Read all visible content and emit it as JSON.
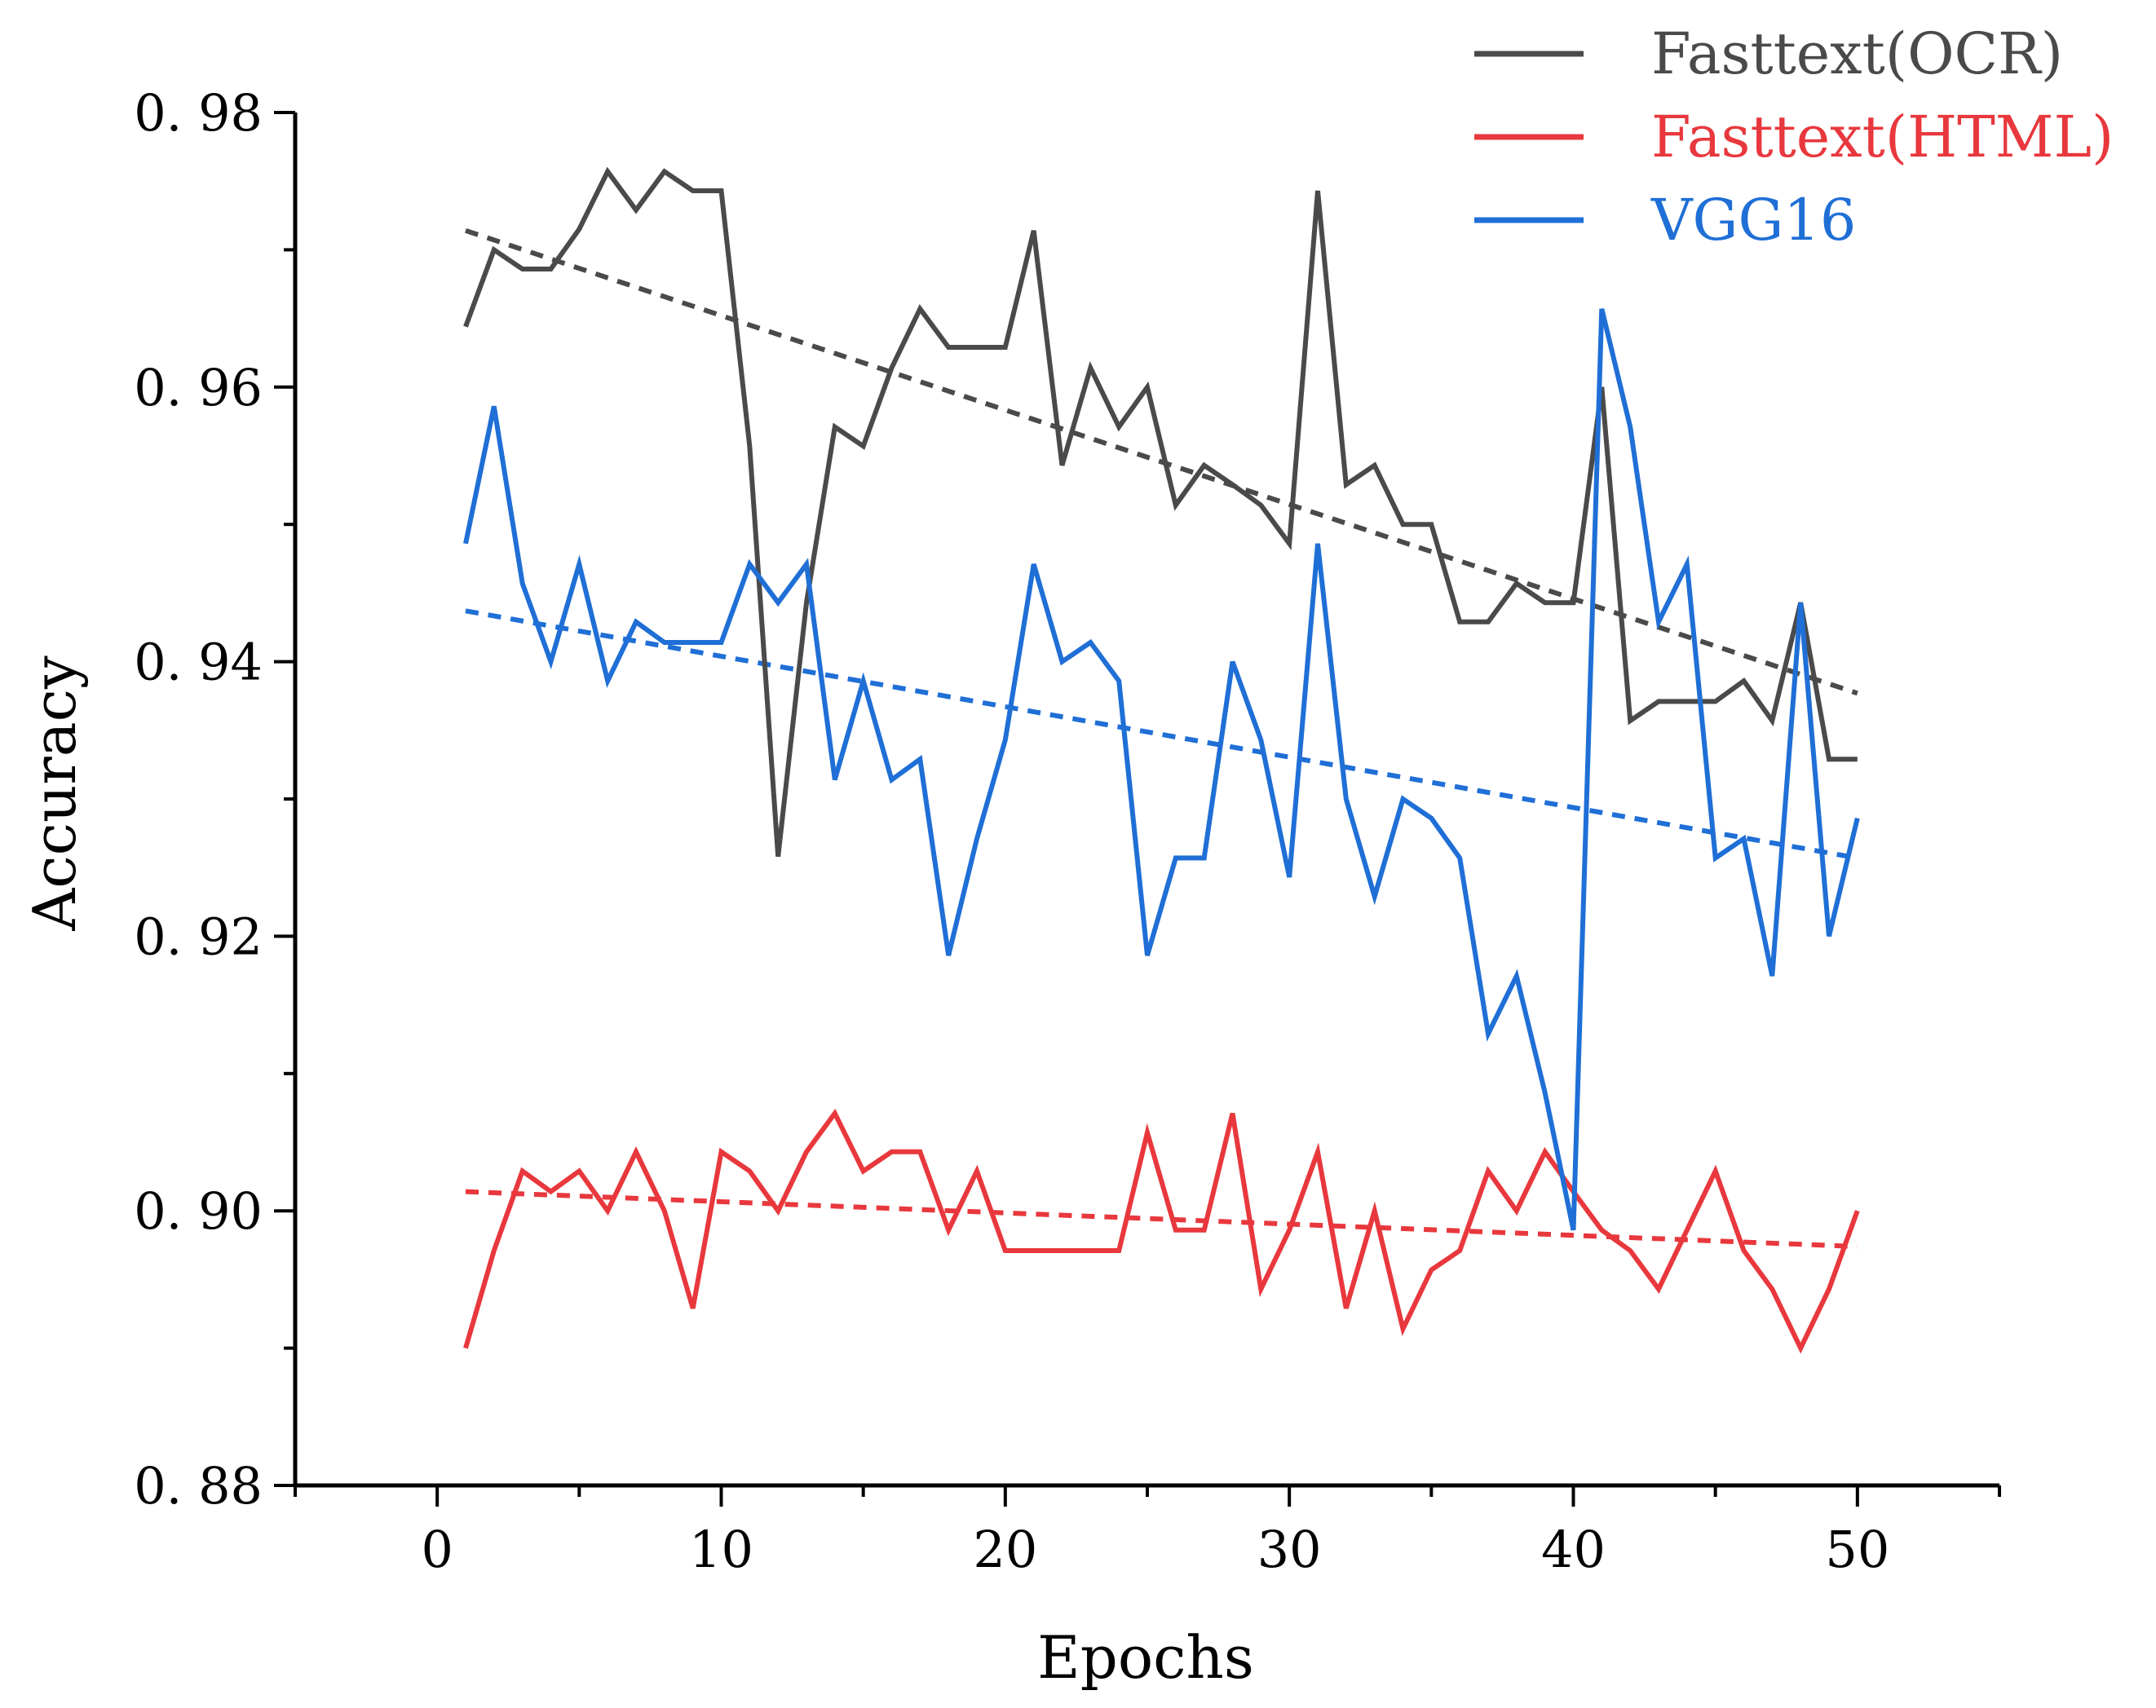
{
  "chart_data": {
    "type": "line",
    "title": "",
    "xlabel": "Epochs",
    "ylabel": "Accuracy",
    "xlim": [
      -5,
      55
    ],
    "ylim": [
      0.88,
      0.98
    ],
    "xticks": [
      0,
      10,
      20,
      30,
      40,
      50
    ],
    "yticks": [
      0.88,
      0.9,
      0.92,
      0.94,
      0.96,
      0.98
    ],
    "xtick_labels": [
      "0",
      "10",
      "20",
      "30",
      "40",
      "50"
    ],
    "ytick_labels": [
      "0. 88",
      "0. 90",
      "0. 92",
      "0. 94",
      "0. 96",
      "0. 98"
    ],
    "grid": false,
    "legend_position": "top-right",
    "x": [
      1,
      2,
      3,
      4,
      5,
      6,
      7,
      8,
      9,
      10,
      11,
      12,
      13,
      14,
      15,
      16,
      17,
      18,
      19,
      20,
      21,
      22,
      23,
      24,
      25,
      26,
      27,
      28,
      29,
      30,
      31,
      32,
      33,
      34,
      35,
      36,
      37,
      38,
      39,
      40,
      41,
      42,
      43,
      44,
      45,
      46,
      47,
      48,
      49,
      50
    ],
    "series": [
      {
        "name": "Fasttext(OCR)",
        "color": "#4a4a4a",
        "values": [
          0.9644,
          0.97,
          0.9686,
          0.9686,
          0.9715,
          0.9757,
          0.9729,
          0.9757,
          0.9743,
          0.9743,
          0.9557,
          0.9258,
          0.9443,
          0.9571,
          0.9557,
          0.9614,
          0.9657,
          0.9629,
          0.9629,
          0.9629,
          0.9714,
          0.9543,
          0.9614,
          0.9571,
          0.96,
          0.9514,
          0.9543,
          0.9529,
          0.9514,
          0.9486,
          0.9743,
          0.9529,
          0.9543,
          0.95,
          0.95,
          0.9429,
          0.9429,
          0.9457,
          0.9443,
          0.9443,
          0.96,
          0.9357,
          0.9371,
          0.9371,
          0.9371,
          0.9386,
          0.9357,
          0.9443,
          0.9329,
          0.9329
        ],
        "trend": [
          0.9714,
          0.9377
        ]
      },
      {
        "name": "Fasttext(HTML)",
        "color": "#e8383d",
        "values": [
          0.89,
          0.8971,
          0.9029,
          0.9014,
          0.9029,
          0.9,
          0.9043,
          0.9,
          0.8929,
          0.9043,
          0.9029,
          0.9,
          0.9043,
          0.9071,
          0.9029,
          0.9043,
          0.9043,
          0.8986,
          0.9029,
          0.8971,
          0.8971,
          0.8971,
          0.8971,
          0.8971,
          0.9057,
          0.8986,
          0.8986,
          0.9071,
          0.8943,
          0.8986,
          0.9043,
          0.8929,
          0.9,
          0.8914,
          0.8957,
          0.8971,
          0.9029,
          0.9,
          0.9043,
          0.9014,
          0.8986,
          0.8971,
          0.8943,
          0.8986,
          0.9029,
          0.8971,
          0.8943,
          0.89,
          0.8943,
          0.9
        ],
        "trend": [
          0.9014,
          0.8974
        ]
      },
      {
        "name": "VGG16",
        "color": "#1f6fd6",
        "values": [
          0.9486,
          0.9586,
          0.9457,
          0.94,
          0.9471,
          0.9386,
          0.9429,
          0.9414,
          0.9414,
          0.9414,
          0.9471,
          0.9443,
          0.9471,
          0.9314,
          0.9386,
          0.9314,
          0.9329,
          0.9186,
          0.9271,
          0.9343,
          0.9471,
          0.94,
          0.9414,
          0.9386,
          0.9186,
          0.9257,
          0.9257,
          0.94,
          0.9343,
          0.9243,
          0.9486,
          0.93,
          0.9229,
          0.93,
          0.9286,
          0.9257,
          0.9129,
          0.9171,
          0.9086,
          0.8986,
          0.9657,
          0.9571,
          0.9429,
          0.9471,
          0.9257,
          0.9271,
          0.9171,
          0.9443,
          0.92,
          0.9286
        ],
        "trend": [
          0.9437,
          0.9257
        ]
      }
    ]
  }
}
